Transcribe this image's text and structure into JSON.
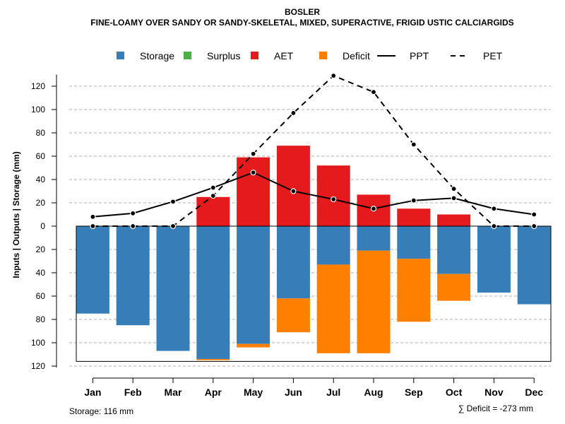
{
  "chart_data": {
    "type": "bar",
    "title": "BOSLER",
    "subtitle": "FINE-LOAMY OVER SANDY OR SANDY-SKELETAL, MIXED, SUPERACTIVE, FRIGID USTIC CALCIARGIDS",
    "ylabel": "Inputs | Outputs | Storage    (mm)",
    "categories": [
      "Jan",
      "Feb",
      "Mar",
      "Apr",
      "May",
      "Jun",
      "Jul",
      "Aug",
      "Sep",
      "Oct",
      "Nov",
      "Dec"
    ],
    "ylim": [
      -120,
      130
    ],
    "yticks": [
      120,
      100,
      80,
      60,
      40,
      20,
      0,
      -20,
      -40,
      -60,
      -80,
      -100,
      -120
    ],
    "ytick_labels": [
      "120",
      "100",
      "80",
      "60",
      "40",
      "20",
      "0",
      "20",
      "40",
      "60",
      "80",
      "100",
      "120"
    ],
    "gridlines": true,
    "legend": [
      {
        "key": "storage",
        "label": "Storage",
        "kind": "box",
        "color": "#377EB8"
      },
      {
        "key": "surplus",
        "label": "Surplus",
        "kind": "box",
        "color": "#4DAF4A"
      },
      {
        "key": "aet",
        "label": "AET",
        "kind": "box",
        "color": "#E41A1C"
      },
      {
        "key": "deficit",
        "label": "Deficit",
        "kind": "box",
        "color": "#FF7F00"
      },
      {
        "key": "ppt",
        "label": "PPT",
        "kind": "solid-line",
        "color": "#000000"
      },
      {
        "key": "pet",
        "label": "PET",
        "kind": "dashed-line",
        "color": "#000000"
      }
    ],
    "series": [
      {
        "name": "AET",
        "color": "#E41A1C",
        "values": [
          0,
          0,
          0,
          25,
          59,
          69,
          52,
          27,
          15,
          10,
          0,
          0
        ]
      },
      {
        "name": "Storage",
        "color": "#377EB8",
        "values": [
          75,
          85,
          107,
          114,
          101,
          62,
          33,
          21,
          28,
          41,
          57,
          67
        ]
      },
      {
        "name": "Deficit",
        "color": "#FF7F00",
        "values": [
          0,
          0,
          0,
          1,
          3,
          29,
          76,
          88,
          54,
          23,
          0,
          0
        ]
      },
      {
        "name": "Surplus",
        "color": "#4DAF4A",
        "values": [
          0,
          0,
          0,
          0,
          0,
          0,
          0,
          0,
          0,
          0,
          0,
          0
        ]
      },
      {
        "name": "PPT",
        "color": "#000000",
        "values": [
          8,
          11,
          21,
          33,
          46,
          30,
          23,
          15,
          22,
          24,
          15,
          10
        ]
      },
      {
        "name": "PET",
        "color": "#000000",
        "values": [
          0,
          0,
          0,
          26,
          62,
          97,
          129,
          115,
          70,
          32,
          0,
          0
        ]
      }
    ],
    "storage_capacity": 116
  },
  "footer": {
    "storage": "Storage: 116 mm",
    "deficit": "∑ Deficit = -273 mm"
  }
}
